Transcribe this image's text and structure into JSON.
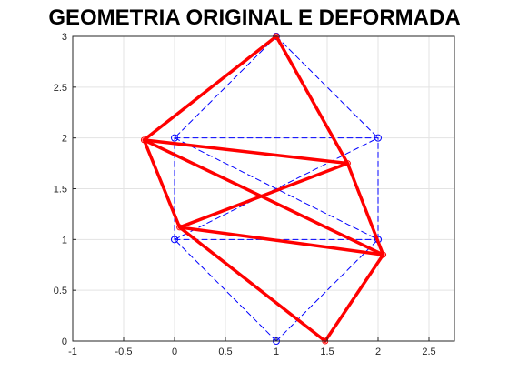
{
  "chart_data": {
    "type": "line",
    "title": "GEOMETRIA ORIGINAL E DEFORMADA",
    "xlabel": "",
    "ylabel": "",
    "xlim": [
      -1,
      2.75
    ],
    "ylim": [
      0,
      3
    ],
    "x_ticks": [
      "-1",
      "-0.5",
      "0",
      "0.5",
      "1",
      "1.5",
      "2",
      "2.5"
    ],
    "y_ticks": [
      "0",
      "0.5",
      "1",
      "1.5",
      "2",
      "2.5",
      "3"
    ],
    "grid": true,
    "series": [
      {
        "style": "dashed",
        "color": "#0000ff",
        "marker": "circle",
        "nodes": [
          {
            "x": 0,
            "y": 1
          },
          {
            "x": 2,
            "y": 1
          },
          {
            "x": 0,
            "y": 2
          },
          {
            "x": 2,
            "y": 2
          },
          {
            "x": 1,
            "y": 0
          },
          {
            "x": 1,
            "y": 3
          }
        ],
        "members": [
          [
            0,
            1
          ],
          [
            2,
            3
          ],
          [
            0,
            2
          ],
          [
            1,
            3
          ],
          [
            0,
            3
          ],
          [
            2,
            1
          ],
          [
            4,
            0
          ],
          [
            4,
            1
          ],
          [
            5,
            2
          ],
          [
            5,
            3
          ]
        ]
      },
      {
        "style": "solid",
        "color": "#ff0000",
        "marker": "circle",
        "nodes": [
          {
            "x": 0.05,
            "y": 1.12
          },
          {
            "x": 2.05,
            "y": 0.85
          },
          {
            "x": -0.3,
            "y": 1.98
          },
          {
            "x": 1.7,
            "y": 1.75
          },
          {
            "x": 1.48,
            "y": 0.0
          },
          {
            "x": 1.0,
            "y": 3.0
          }
        ],
        "members": [
          [
            0,
            1
          ],
          [
            2,
            3
          ],
          [
            0,
            2
          ],
          [
            1,
            3
          ],
          [
            0,
            3
          ],
          [
            2,
            1
          ],
          [
            4,
            0
          ],
          [
            4,
            1
          ],
          [
            5,
            2
          ],
          [
            5,
            3
          ]
        ]
      }
    ]
  }
}
